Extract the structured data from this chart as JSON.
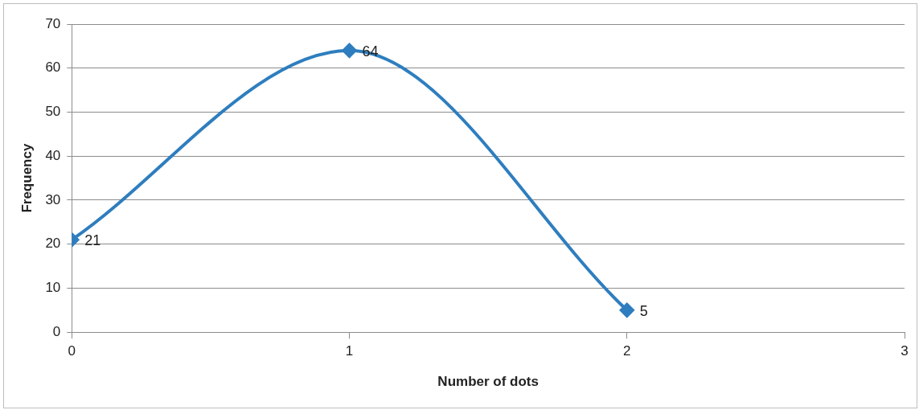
{
  "chart_data": {
    "type": "line",
    "xlabel": "Number of dots",
    "ylabel": "Frequency",
    "x": [
      0,
      1,
      2
    ],
    "series": [
      {
        "color": "#2e7ebf",
        "values": [
          21,
          64,
          5
        ]
      }
    ],
    "xlim": [
      0,
      3
    ],
    "xticks": [
      0,
      1,
      2,
      3
    ],
    "ylim": [
      0,
      70
    ],
    "yticks": [
      0,
      10,
      20,
      30,
      40,
      50,
      60,
      70
    ],
    "grid": "y",
    "legend": false,
    "marker": "diamond",
    "line_style": "solid",
    "data_labels": true
  }
}
